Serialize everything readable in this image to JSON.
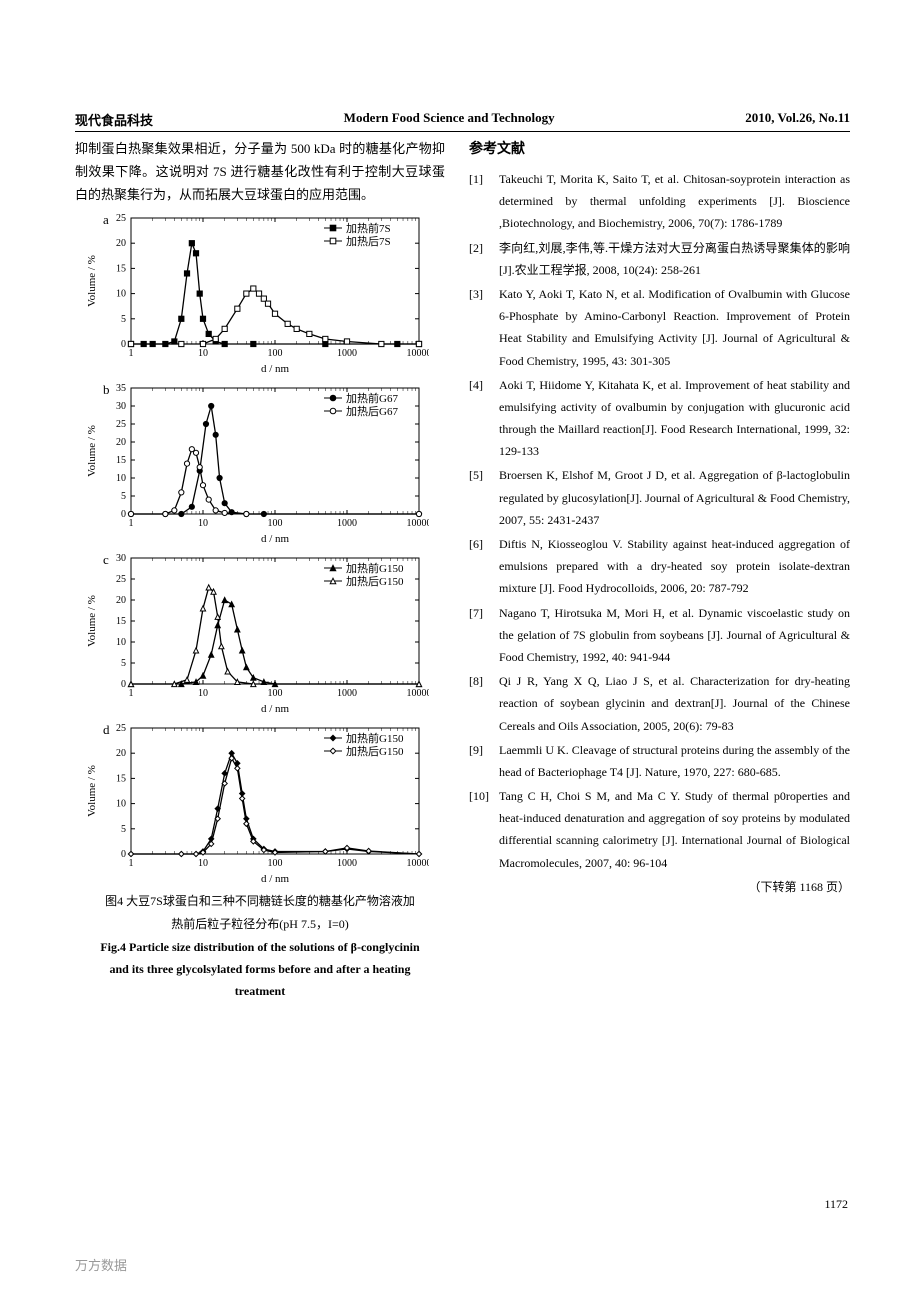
{
  "header": {
    "left": "现代食品科技",
    "center": "Modern Food Science and Technology",
    "right": "2010, Vol.26, No.11"
  },
  "left_column": {
    "body_text": "抑制蛋白热聚集效果相近，分子量为 500 kDa 时的糖基化产物抑制效果下降。这说明对 7S 进行糖基化改性有利于控制大豆球蛋白的热聚集行为，从而拓展大豆球蛋白的应用范围。",
    "figure": {
      "caption_cn_line1": "图4 大豆7S球蛋白和三种不同糖链长度的糖基化产物溶液加",
      "caption_cn_line2": "热前后粒子粒径分布(pH 7.5，I=0)",
      "caption_en_line1": "Fig.4 Particle size distribution of the solutions of β-conglycinin",
      "caption_en_line2": "and its three glycolsylated forms before and after a heating",
      "caption_en_line3": "treatment",
      "x_axis_label": "d / nm",
      "y_axis_label": "Volume / %",
      "x_ticks": [
        1,
        10,
        100,
        1000,
        10000
      ],
      "panels": [
        {
          "id": "a",
          "y_max": 25,
          "y_step": 5,
          "series": [
            {
              "label": "加热前7S",
              "marker": "square-filled",
              "x": [
                1,
                1.5,
                2,
                3,
                4,
                5,
                6,
                7,
                8,
                9,
                10,
                12,
                15,
                20,
                50,
                500,
                5000,
                10000
              ],
              "y": [
                0,
                0,
                0,
                0,
                0.5,
                5,
                14,
                20,
                18,
                10,
                5,
                2,
                0.5,
                0,
                0,
                0,
                0,
                0
              ]
            },
            {
              "label": "加热后7S",
              "marker": "square-open",
              "x": [
                1,
                5,
                10,
                15,
                20,
                30,
                40,
                50,
                60,
                70,
                80,
                100,
                150,
                200,
                300,
                500,
                1000,
                3000,
                10000
              ],
              "y": [
                0,
                0,
                0,
                1,
                3,
                7,
                10,
                11,
                10,
                9,
                8,
                6,
                4,
                3,
                2,
                1,
                0.5,
                0,
                0
              ]
            }
          ]
        },
        {
          "id": "b",
          "y_max": 35,
          "y_step": 5,
          "series": [
            {
              "label": "加热前G67",
              "marker": "circle-filled",
              "x": [
                1,
                3,
                5,
                7,
                9,
                11,
                13,
                15,
                17,
                20,
                25,
                40,
                70,
                10000
              ],
              "y": [
                0,
                0,
                0,
                2,
                12,
                25,
                30,
                22,
                10,
                3,
                0.5,
                0,
                0,
                0
              ]
            },
            {
              "label": "加热后G67",
              "marker": "circle-open",
              "x": [
                1,
                3,
                4,
                5,
                6,
                7,
                8,
                9,
                10,
                12,
                15,
                20,
                40,
                10000
              ],
              "y": [
                0,
                0,
                1,
                6,
                14,
                18,
                17,
                13,
                8,
                4,
                1,
                0.3,
                0,
                0
              ]
            }
          ]
        },
        {
          "id": "c",
          "y_max": 30,
          "y_step": 5,
          "series": [
            {
              "label": "加热前G150",
              "marker": "triangle-filled",
              "x": [
                1,
                5,
                8,
                10,
                13,
                16,
                20,
                25,
                30,
                35,
                40,
                50,
                70,
                100,
                10000
              ],
              "y": [
                0,
                0,
                0.5,
                2,
                7,
                14,
                20,
                19,
                13,
                8,
                4,
                1.5,
                0.5,
                0,
                0
              ]
            },
            {
              "label": "加热后G150",
              "marker": "triangle-open",
              "x": [
                1,
                4,
                6,
                8,
                10,
                12,
                14,
                16,
                18,
                22,
                30,
                50,
                10000
              ],
              "y": [
                0,
                0,
                1,
                8,
                18,
                23,
                22,
                16,
                9,
                3,
                0.5,
                0,
                0
              ]
            }
          ]
        },
        {
          "id": "d",
          "y_max": 25,
          "y_step": 5,
          "series": [
            {
              "label": "加热前G150",
              "marker": "diamond-filled",
              "x": [
                1,
                5,
                8,
                10,
                13,
                16,
                20,
                25,
                30,
                35,
                40,
                50,
                70,
                100,
                500,
                1000,
                2000,
                10000
              ],
              "y": [
                0,
                0,
                0,
                0.5,
                3,
                9,
                16,
                20,
                18,
                12,
                7,
                3,
                1,
                0.5,
                0.5,
                1,
                0.5,
                0
              ]
            },
            {
              "label": "加热后G150",
              "marker": "diamond-open",
              "x": [
                1,
                5,
                8,
                10,
                13,
                16,
                20,
                25,
                30,
                35,
                40,
                50,
                70,
                100,
                500,
                1000,
                2000,
                10000
              ],
              "y": [
                0,
                0,
                0,
                0.3,
                2,
                7,
                14,
                19,
                17,
                11,
                6,
                2.5,
                0.8,
                0.3,
                0.5,
                1.2,
                0.6,
                0
              ]
            }
          ]
        }
      ]
    }
  },
  "right_column": {
    "ref_heading": "参考文献",
    "references": [
      {
        "n": "[1]",
        "t": "Takeuchi T, Morita K, Saito T, et al. Chitosan-soyprotein interaction as determined by thermal unfolding experiments [J]. Bioscience ,Biotechnology, and Biochemistry, 2006, 70(7): 1786-1789"
      },
      {
        "n": "[2]",
        "t": "李向红,刘展,李伟,等.干燥方法对大豆分离蛋白热诱导聚集体的影响[J].农业工程学报, 2008, 10(24): 258-261"
      },
      {
        "n": "[3]",
        "t": "Kato Y, Aoki T, Kato N, et al. Modification of Ovalbumin with Glucose 6-Phosphate by Amino-Carbonyl Reaction. Improvement of Protein Heat Stability and Emulsifying Activity [J]. Journal of Agricultural & Food  Chemistry, 1995, 43: 301-305"
      },
      {
        "n": "[4]",
        "t": "Aoki T, Hiidome Y, Kitahata K, et al. Improvement of heat stability and emulsifying activity of ovalbumin by conjugation with glucuronic acid through the Maillard reaction[J]. Food Research International, 1999, 32: 129-133"
      },
      {
        "n": "[5]",
        "t": "Broersen K, Elshof M, Groot J D, et al. Aggregation of β-lactoglobulin regulated by glucosylation[J]. Journal of Agricultural & Food  Chemistry, 2007, 55: 2431-2437"
      },
      {
        "n": "[6]",
        "t": "Diftis N, Kiosseoglou V. Stability against heat-induced aggregation of emulsions prepared with a dry-heated soy protein isolate-dextran mixture [J]. Food Hydrocolloids, 2006, 20: 787-792"
      },
      {
        "n": "[7]",
        "t": "Nagano T, Hirotsuka M, Mori H, et al. Dynamic viscoelastic study on the gelation of 7S globulin from soybeans [J]. Journal of Agricultural & Food  Chemistry, 1992, 40: 941-944"
      },
      {
        "n": "[8]",
        "t": "Qi J R, Yang X Q, Liao J S, et al. Characterization for dry-heating reaction of soybean glycinin and dextran[J]. Journal of the Chinese Cereals and Oils Association, 2005, 20(6): 79-83"
      },
      {
        "n": "[9]",
        "t": "Laemmli U K. Cleavage of structural proteins during the assembly of the head of Bacteriophage T4 [J]. Nature, 1970, 227: 680-685."
      },
      {
        "n": "[10]",
        "t": "Tang C H, Choi S M, and Ma C Y. Study of thermal p0roperties and heat-induced denaturation and aggregation of soy proteins by modulated differential scanning calorimetry [J]. International Journal of Biological Macromolecules, 2007, 40: 96-104"
      }
    ],
    "continue_note": "（下转第 1168 页）"
  },
  "page_number": "1172",
  "watermark": "万方数据"
}
